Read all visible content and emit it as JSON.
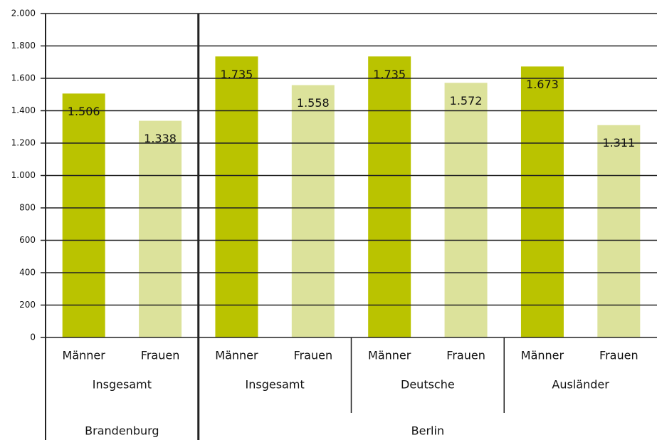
{
  "chart_data": {
    "type": "bar",
    "categories": [
      "Männer",
      "Frauen",
      "Männer",
      "Frauen",
      "Männer",
      "Frauen",
      "Männer",
      "Frauen"
    ],
    "values": [
      1506,
      1338,
      1735,
      1558,
      1735,
      1572,
      1673,
      1311
    ],
    "value_labels": [
      "1.506",
      "1.338",
      "1.735",
      "1.558",
      "1.735",
      "1.572",
      "1.673",
      "1.311"
    ],
    "colors": [
      "#bac300",
      "#dce29b",
      "#bac300",
      "#dce29b",
      "#bac300",
      "#dce29b",
      "#bac300",
      "#dce29b"
    ],
    "groups": [
      "Insgesamt",
      "Insgesamt",
      "Deutsche",
      "Ausländer"
    ],
    "top_groups": [
      "Brandenburg",
      "Berlin"
    ],
    "ylim": [
      0,
      2000
    ],
    "yticks": [
      0,
      200,
      400,
      600,
      800,
      {
        "value": 1000,
        "label": "1.000"
      },
      {
        "value": 1200,
        "label": "1.200"
      },
      {
        "value": 1400,
        "label": "1.400"
      },
      {
        "value": 1600,
        "label": "1.600"
      },
      {
        "value": 1800,
        "label": "1.800"
      },
      {
        "value": 2000,
        "label": "2.000"
      }
    ],
    "grid": true
  }
}
